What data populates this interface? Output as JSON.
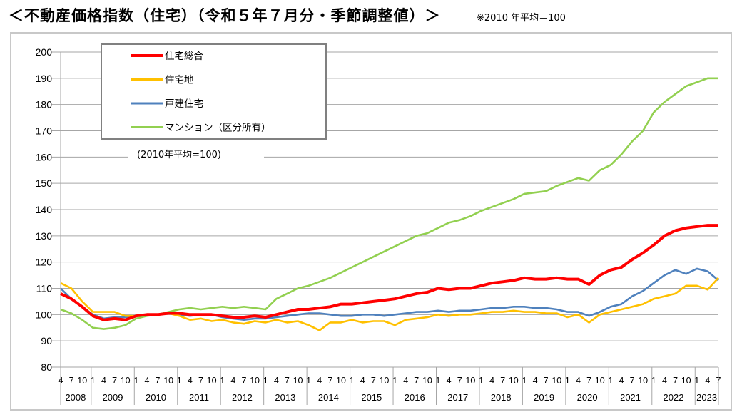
{
  "title": "＜不動産価格指数（住宅）（令和５年７月分・季節調整値）＞",
  "note": "※2010 年平均＝100",
  "chart_data": {
    "type": "line",
    "title": "＜不動産価格指数（住宅）（令和５年７月分・季節調整値）＞",
    "annotation": "(2010年平均=100)",
    "ylim": [
      80,
      200
    ],
    "yticks": [
      80,
      90,
      100,
      110,
      120,
      130,
      140,
      150,
      160,
      170,
      180,
      190,
      200
    ],
    "grid": true,
    "legend": "top-left",
    "x_month_ticks": [
      "1",
      "4",
      "7",
      "10"
    ],
    "years": [
      "2008",
      "2009",
      "2010",
      "2011",
      "2012",
      "2013",
      "2014",
      "2015",
      "2016",
      "2017",
      "2018",
      "2019",
      "2020",
      "2021",
      "2022",
      "2023"
    ],
    "x": [
      "2008-04",
      "2008-07",
      "2008-10",
      "2009-01",
      "2009-04",
      "2009-07",
      "2009-10",
      "2010-01",
      "2010-04",
      "2010-07",
      "2010-10",
      "2011-01",
      "2011-04",
      "2011-07",
      "2011-10",
      "2012-01",
      "2012-04",
      "2012-07",
      "2012-10",
      "2013-01",
      "2013-04",
      "2013-07",
      "2013-10",
      "2014-01",
      "2014-04",
      "2014-07",
      "2014-10",
      "2015-01",
      "2015-04",
      "2015-07",
      "2015-10",
      "2016-01",
      "2016-04",
      "2016-07",
      "2016-10",
      "2017-01",
      "2017-04",
      "2017-07",
      "2017-10",
      "2018-01",
      "2018-04",
      "2018-07",
      "2018-10",
      "2019-01",
      "2019-04",
      "2019-07",
      "2019-10",
      "2020-01",
      "2020-04",
      "2020-07",
      "2020-10",
      "2021-01",
      "2021-04",
      "2021-07",
      "2021-10",
      "2022-01",
      "2022-04",
      "2022-07",
      "2022-10",
      "2023-01",
      "2023-04",
      "2023-07"
    ],
    "series": [
      {
        "name": "住宅総合",
        "color": "#ff0000",
        "values": [
          108,
          106,
          103,
          99.5,
          98,
          98.5,
          98,
          99.5,
          100,
          100,
          100.5,
          100.5,
          100,
          100,
          100,
          99.5,
          99,
          99,
          99.5,
          99,
          100,
          101,
          102,
          102,
          102.5,
          103,
          104,
          104,
          104.5,
          105,
          105.5,
          106,
          107,
          108,
          108.5,
          110,
          109.5,
          110,
          110,
          111,
          112,
          112.5,
          113,
          114,
          113.5,
          113.5,
          114,
          113.5,
          113.5,
          111.5,
          115,
          117,
          118,
          121,
          123.5,
          126.5,
          130,
          132,
          133,
          133.5,
          134,
          134
        ]
      },
      {
        "name": "住宅地",
        "color": "#ffc000",
        "values": [
          112,
          110,
          105,
          101,
          101,
          101,
          99.5,
          99.5,
          100,
          100,
          100.5,
          99.5,
          98,
          98.5,
          97.5,
          98,
          97,
          96.5,
          97.5,
          97,
          98,
          97,
          97.5,
          96,
          94,
          97,
          97,
          98,
          97,
          97.5,
          97.5,
          96,
          98,
          98.5,
          99,
          100,
          99.5,
          100,
          100,
          100.5,
          101,
          101,
          101.5,
          101,
          101,
          100.5,
          100.5,
          99,
          100,
          97,
          100,
          101,
          102,
          103,
          104,
          106,
          107,
          108,
          111,
          111,
          109.5,
          114
        ]
      },
      {
        "name": "戸建住宅",
        "color": "#4f81bd",
        "values": [
          110,
          106,
          103,
          100,
          98.5,
          99,
          99,
          99.5,
          100,
          100,
          100.5,
          100,
          99.5,
          100,
          100,
          99,
          98.5,
          98,
          98.5,
          98.5,
          99,
          99.5,
          100,
          100.5,
          100.5,
          100,
          99.5,
          99.5,
          100,
          100,
          99.5,
          100,
          100.5,
          101,
          101,
          101.5,
          101,
          101.5,
          101.5,
          102,
          102.5,
          102.5,
          103,
          103,
          102.5,
          102.5,
          102,
          101,
          101,
          99.5,
          101,
          103,
          104,
          107,
          109,
          112,
          115,
          117,
          115.5,
          117.5,
          116.5,
          113
        ]
      },
      {
        "name": "マンション（区分所有）",
        "color": "#92d050",
        "values": [
          102,
          100.5,
          98,
          95,
          94.5,
          95,
          96,
          98.5,
          99.5,
          100,
          101,
          102,
          102.5,
          102,
          102.5,
          103,
          102.5,
          103,
          102.5,
          102,
          106,
          108,
          110,
          111,
          112.5,
          114,
          116,
          118,
          120,
          122,
          124,
          126,
          128,
          130,
          131,
          133,
          135,
          136,
          137.5,
          139.5,
          141,
          142.5,
          144,
          146,
          146.5,
          147,
          149,
          150.5,
          152,
          151,
          155,
          157,
          161,
          166,
          170,
          177,
          181,
          184,
          187,
          188.5,
          190,
          190
        ]
      }
    ]
  }
}
